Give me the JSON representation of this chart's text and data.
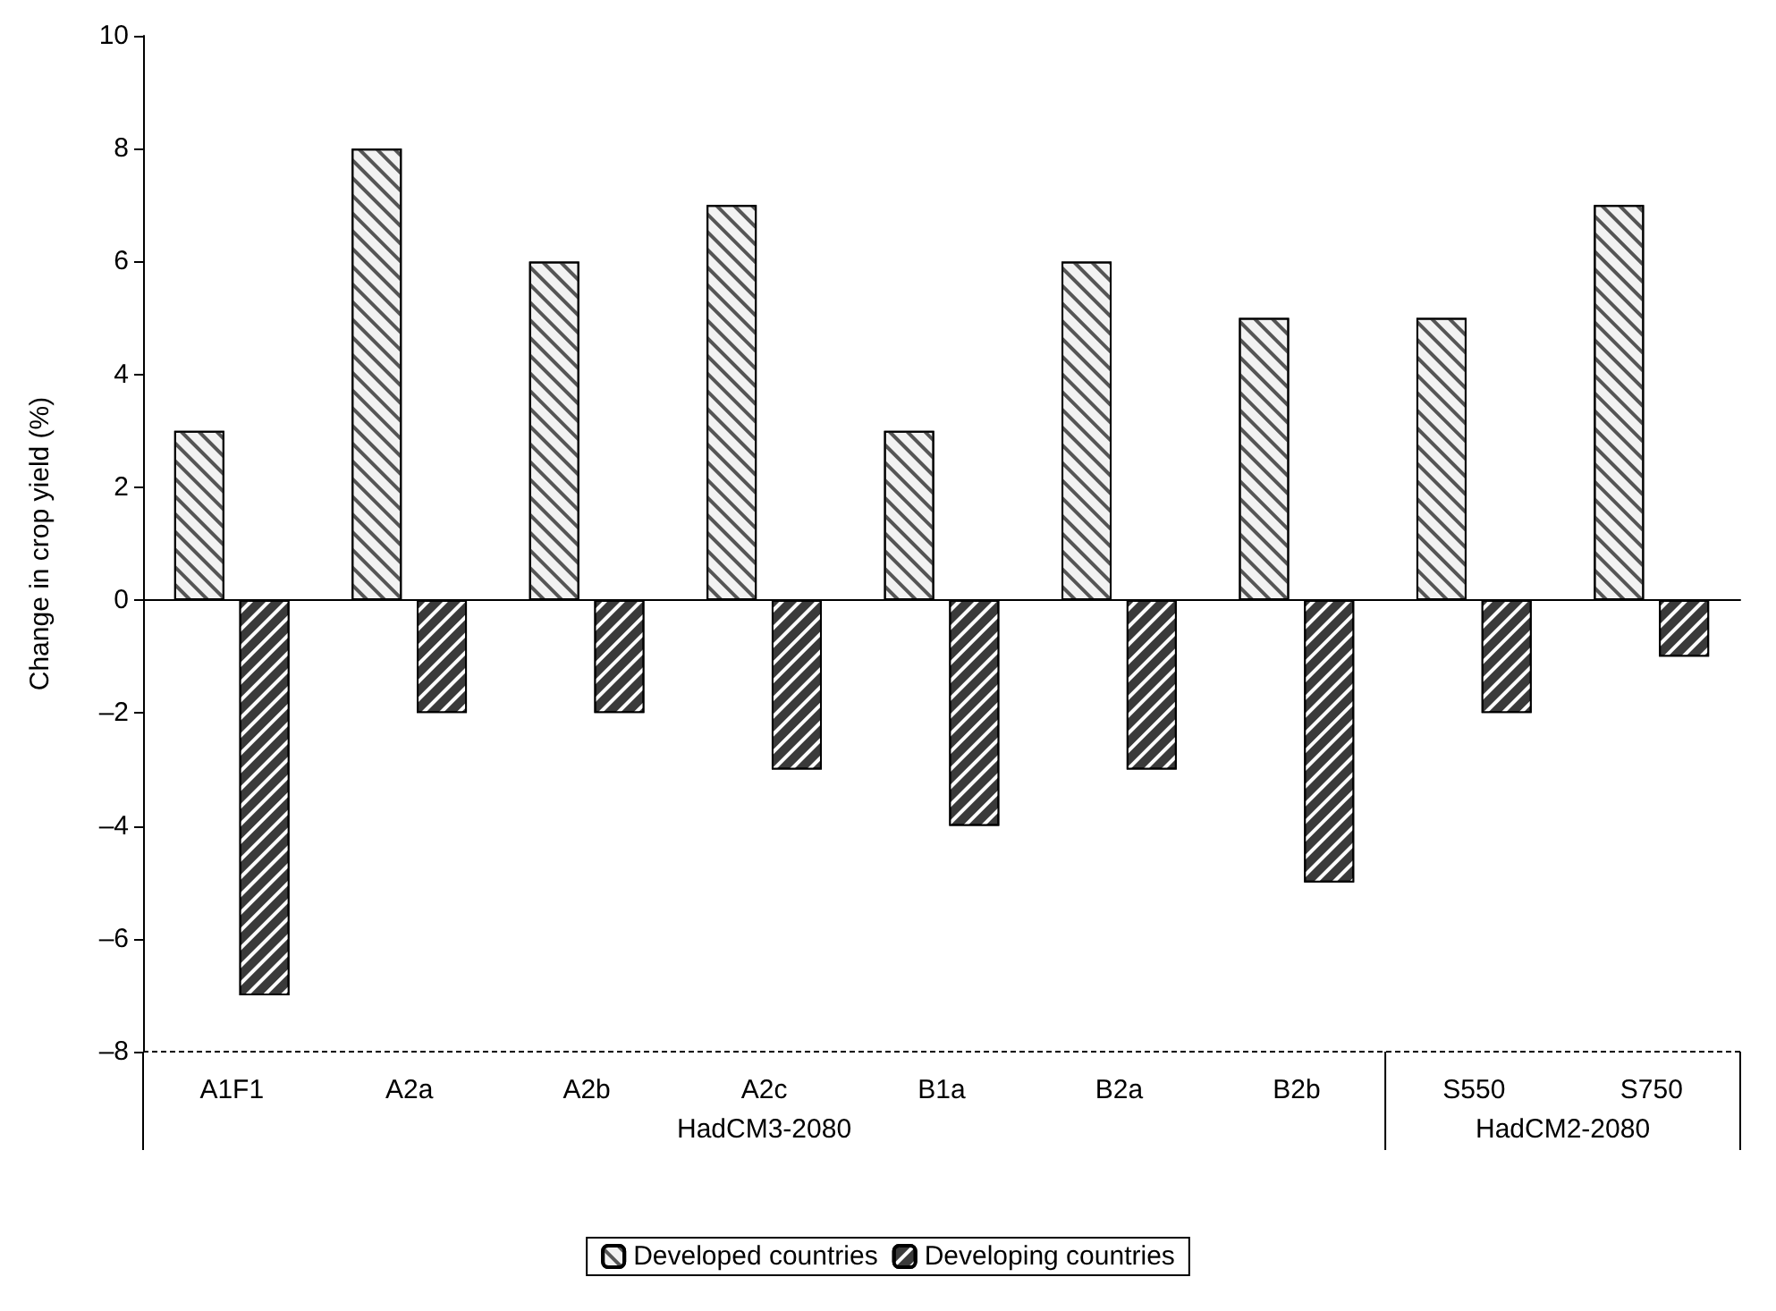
{
  "chart_data": {
    "type": "bar",
    "ylabel": "Change in crop yield (%)",
    "categories": [
      "A1F1",
      "A2a",
      "A2b",
      "A2c",
      "B1a",
      "B2a",
      "B2b",
      "S550",
      "S750"
    ],
    "series": [
      {
        "name": "Developed countries",
        "color": "#f2f2f2",
        "values": [
          3,
          8,
          6,
          7,
          3,
          6,
          5,
          5,
          7
        ]
      },
      {
        "name": "Developing countries",
        "color": "#3a3a3a",
        "values": [
          -7,
          -2,
          -2,
          -3,
          -4,
          -3,
          -5,
          -2,
          -1
        ]
      }
    ],
    "ylim": [
      -8,
      10
    ],
    "yticks": [
      {
        "value": -8,
        "label": "–8"
      },
      {
        "value": -6,
        "label": "–6"
      },
      {
        "value": -4,
        "label": "–4"
      },
      {
        "value": -2,
        "label": "–2"
      },
      0,
      2,
      4,
      6,
      8,
      10
    ],
    "annotations": [
      "HadCM3-2080",
      "HadCM2-2080"
    ],
    "legend": "bottom"
  }
}
